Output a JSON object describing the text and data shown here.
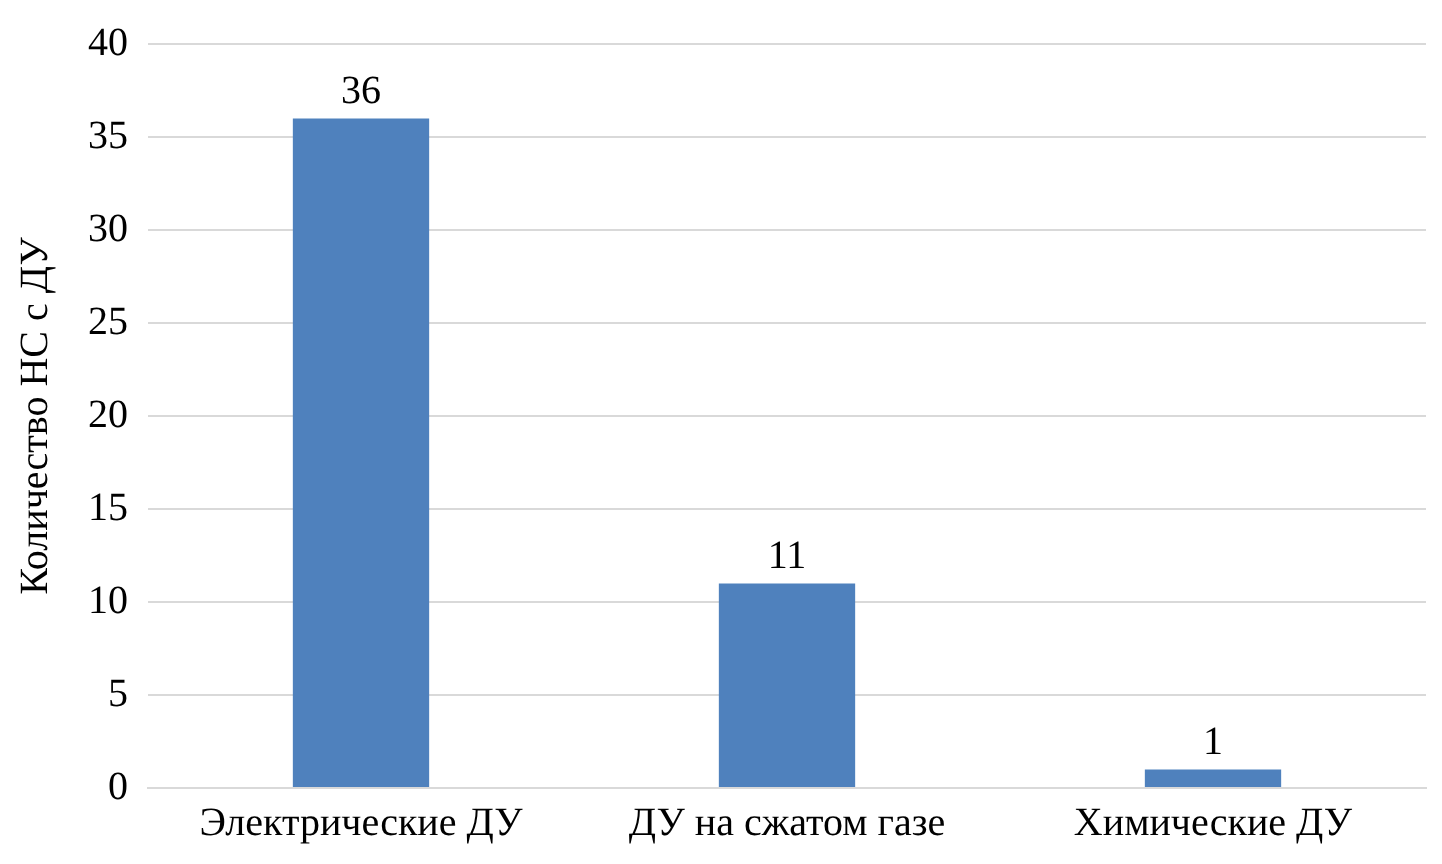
{
  "chart_data": {
    "type": "bar",
    "ylabel": "Количество НС с ДУ",
    "categories": [
      "Электрические ДУ",
      "ДУ на сжатом газе",
      "Химические ДУ"
    ],
    "values": [
      36,
      11,
      1
    ],
    "color": "#4f81bd",
    "ylim": [
      0,
      40
    ],
    "yticks": [
      0,
      5,
      10,
      15,
      20,
      25,
      30,
      35,
      40
    ],
    "grid": "y",
    "legend": false,
    "data_labels": true
  }
}
